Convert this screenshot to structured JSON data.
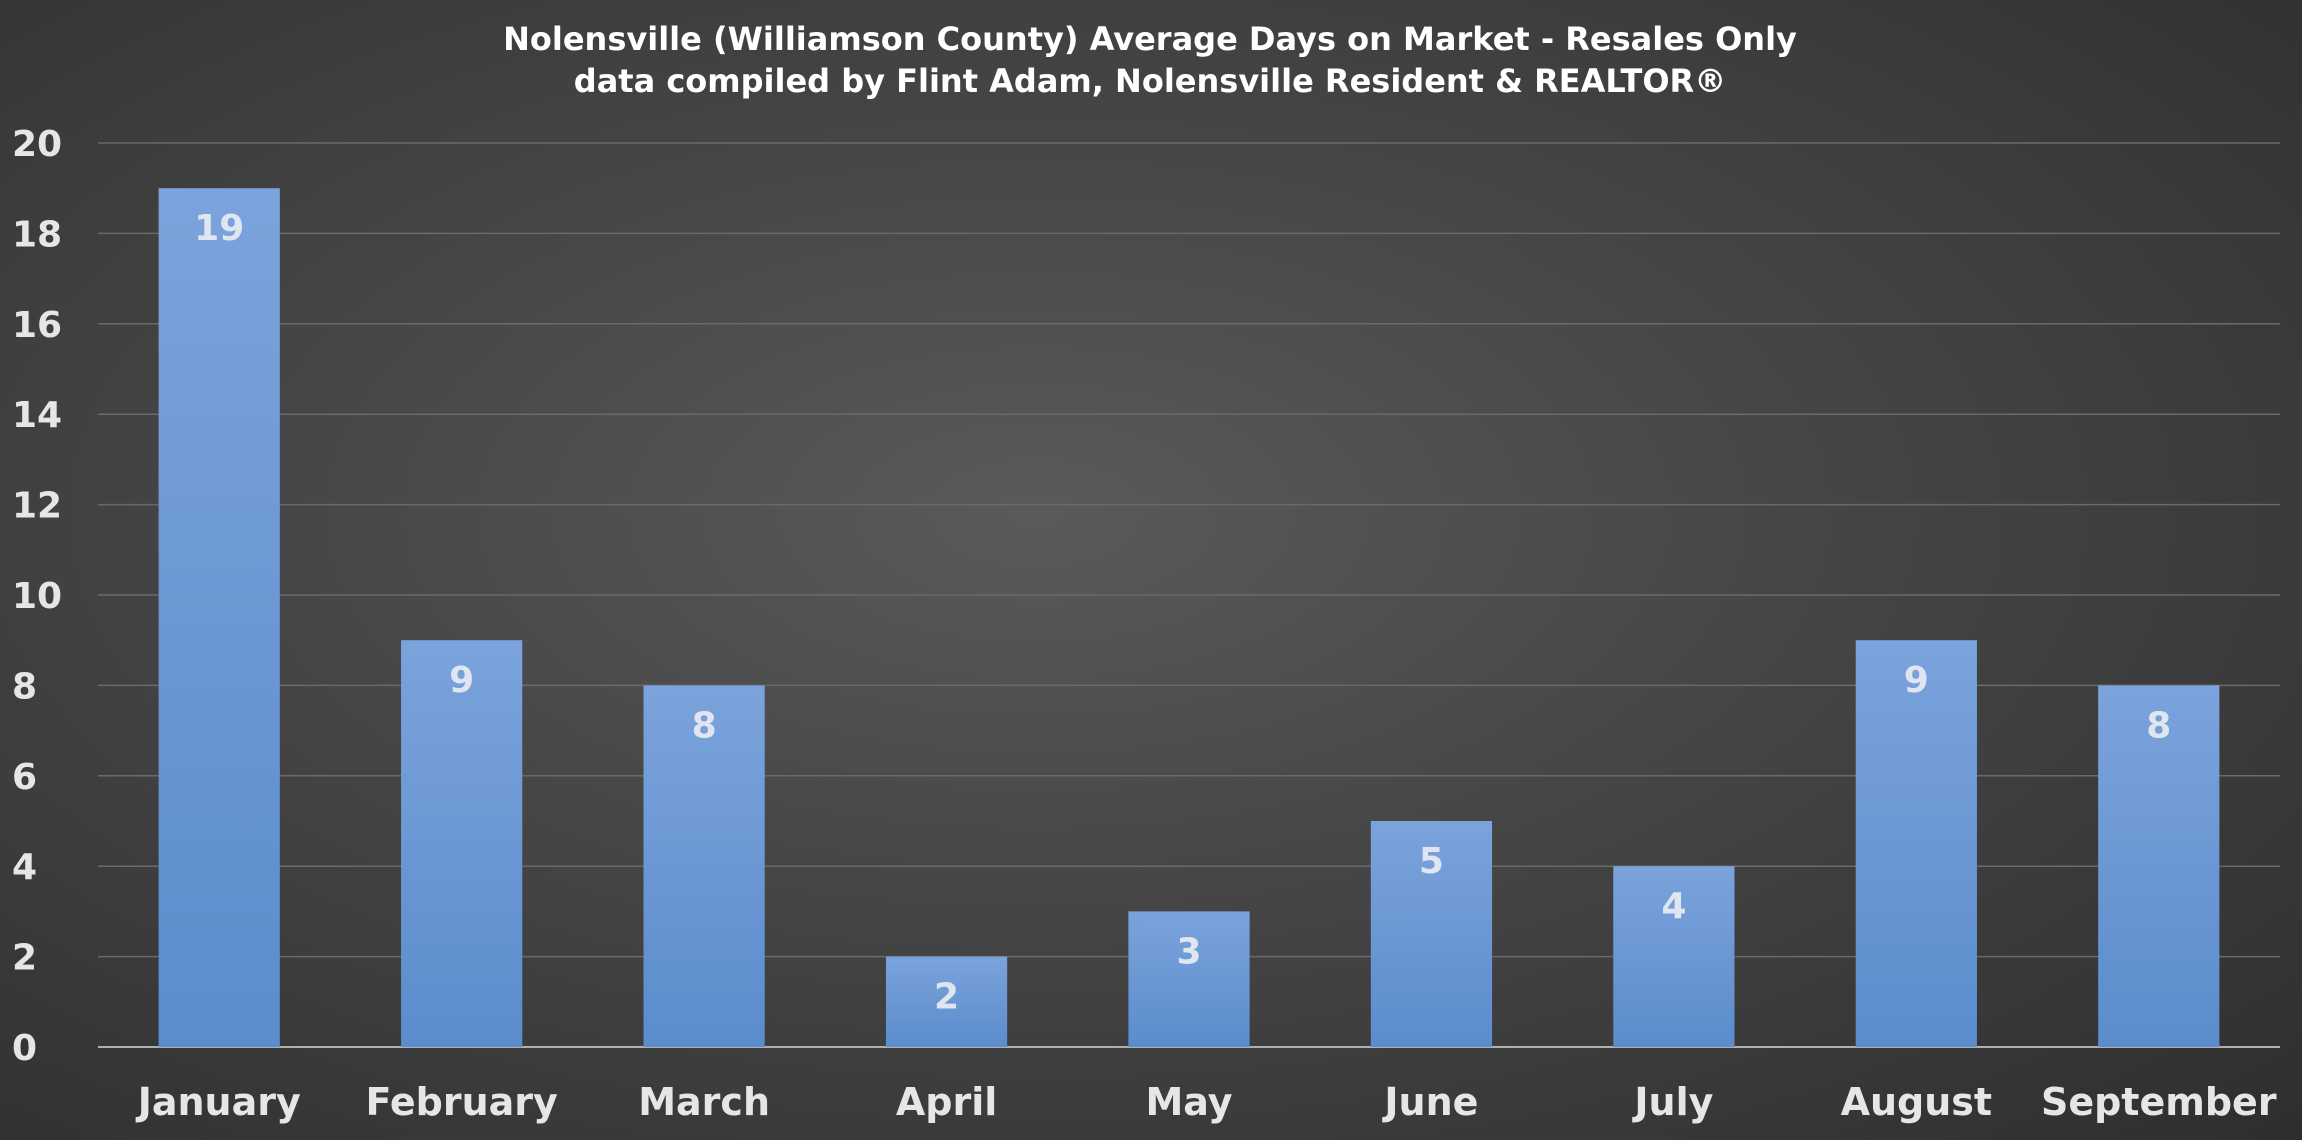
{
  "chart_data": {
    "type": "bar",
    "title": "Nolensville (Williamson County) Average Days on Market - Resales Only",
    "subtitle": "data compiled by Flint Adam, Nolensville Resident & REALTOR®",
    "categories": [
      "January",
      "February",
      "March",
      "April",
      "May",
      "June",
      "July",
      "August",
      "September"
    ],
    "values": [
      19,
      9,
      8,
      2,
      3,
      5,
      4,
      9,
      8
    ],
    "data_labels": [
      "19",
      "9",
      "8",
      "2",
      "3",
      "5",
      "4",
      "9",
      "8"
    ],
    "xlabel": "",
    "ylabel": "",
    "ylim": [
      0,
      20
    ],
    "yticks": [
      0,
      2,
      4,
      6,
      8,
      10,
      12,
      14,
      16,
      18,
      20
    ],
    "grid": true,
    "legend": "none",
    "colors": {
      "bar_top": "#7ba3dc",
      "bar_bottom": "#5b8ccc",
      "gridline": "#6a6a6a",
      "axis_line": "#b0b0b0"
    }
  }
}
